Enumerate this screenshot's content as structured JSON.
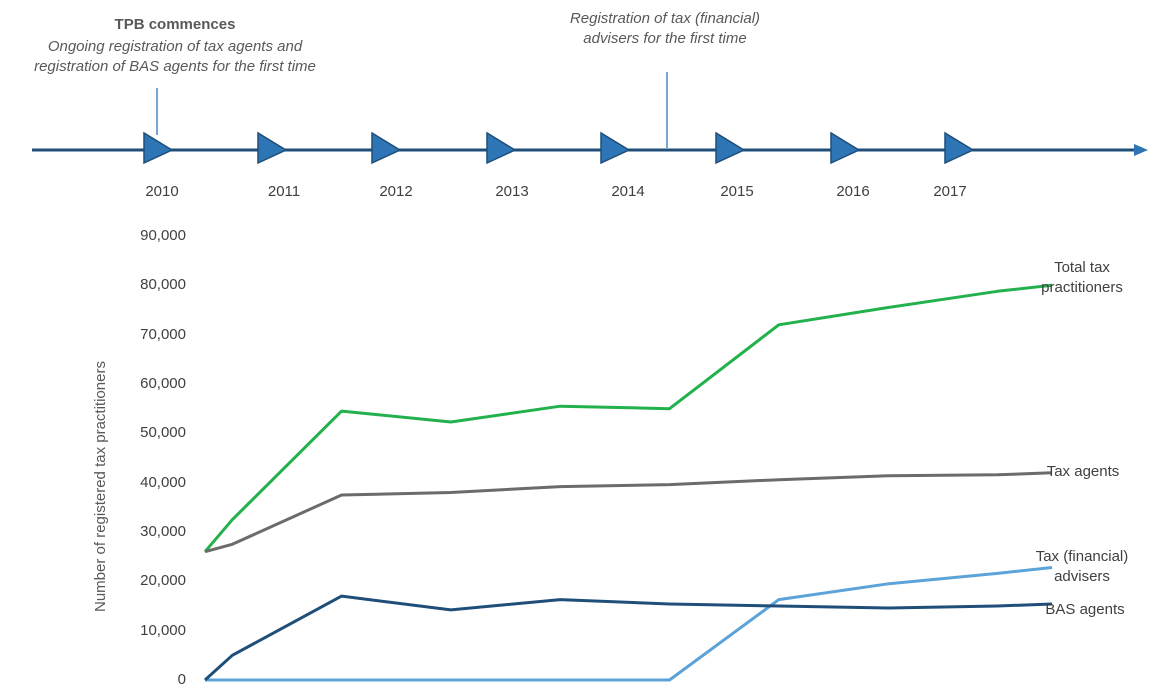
{
  "timeline": {
    "years": [
      "2010",
      "2011",
      "2012",
      "2013",
      "2014",
      "2015",
      "2016",
      "2017"
    ],
    "annotations": [
      {
        "title": "TPB commences",
        "lines": [
          "Ongoing registration of tax agents and",
          "registration of BAS agents for the first time"
        ]
      },
      {
        "title": "",
        "lines": [
          "Registration of tax (financial)",
          "advisers for the first time"
        ]
      }
    ],
    "colors": {
      "axis": "#1f4e79",
      "marker": "#2e75b6",
      "marker_edge": "#1f4e79",
      "callout": "#2e75b6"
    }
  },
  "chart_data": {
    "type": "line",
    "ylabel": "Number of registered tax practitioners",
    "ylim": [
      0,
      90000
    ],
    "yticks": [
      "90,000",
      "80,000",
      "70,000",
      "60,000",
      "50,000",
      "40,000",
      "30,000",
      "20,000",
      "10,000",
      "0"
    ],
    "x": [
      2010.0,
      2010.25,
      2011.25,
      2012.25,
      2013.25,
      2014.25,
      2015.25,
      2016.25,
      2017.25,
      2017.75
    ],
    "series": [
      {
        "name": "Total tax practitioners",
        "label_lines": [
          "Total tax",
          "practitioners"
        ],
        "color": "#22b14c",
        "values": [
          26000,
          32500,
          54500,
          52300,
          55500,
          55000,
          72000,
          75500,
          78800,
          80000
        ]
      },
      {
        "name": "Tax agents",
        "label_lines": [
          "Tax agents"
        ],
        "color": "#6b6b6b",
        "values": [
          26000,
          27500,
          37500,
          38000,
          39200,
          39600,
          40600,
          41400,
          41600,
          42000
        ]
      },
      {
        "name": "Tax (financial) advisers",
        "label_lines": [
          "Tax (financial)",
          "advisers"
        ],
        "color": "#5ba3d9",
        "values": [
          0,
          0,
          0,
          0,
          0,
          0,
          16300,
          19500,
          21600,
          22800
        ]
      },
      {
        "name": "BAS agents",
        "label_lines": [
          "BAS agents"
        ],
        "color": "#1f4e79",
        "values": [
          0,
          5000,
          17000,
          14200,
          16300,
          15400,
          15000,
          14600,
          15000,
          15400
        ]
      }
    ]
  }
}
